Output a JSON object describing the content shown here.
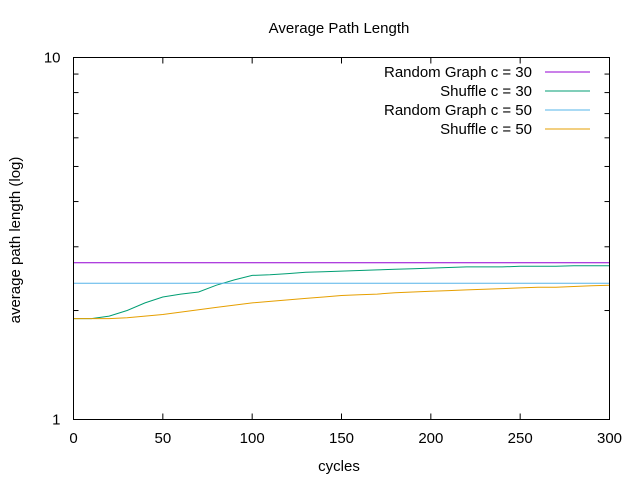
{
  "chart_data": {
    "type": "line",
    "title": "Average Path Length",
    "xlabel": "cycles",
    "ylabel": "average path length (log)",
    "xlim": [
      0,
      300
    ],
    "ylim": [
      1,
      10
    ],
    "yscale": "log",
    "grid": false,
    "legend_position": "top-right",
    "x_ticks": [
      "0",
      "50",
      "100",
      "150",
      "200",
      "250",
      "300"
    ],
    "y_ticks": [
      "1",
      "10"
    ],
    "series": [
      {
        "name": "Random Graph c = 30",
        "color": "#9400d3",
        "x": [
          0,
          300
        ],
        "y": [
          2.71,
          2.71
        ]
      },
      {
        "name": "Shuffle c = 30",
        "color": "#009e73",
        "x": [
          0,
          10,
          20,
          30,
          40,
          50,
          60,
          70,
          80,
          90,
          100,
          110,
          120,
          130,
          140,
          150,
          160,
          170,
          180,
          190,
          200,
          210,
          220,
          230,
          240,
          250,
          260,
          270,
          280,
          290,
          300
        ],
        "y": [
          1.9,
          1.9,
          1.93,
          2.0,
          2.1,
          2.18,
          2.22,
          2.25,
          2.35,
          2.43,
          2.5,
          2.51,
          2.53,
          2.55,
          2.56,
          2.57,
          2.58,
          2.59,
          2.6,
          2.61,
          2.62,
          2.63,
          2.64,
          2.64,
          2.64,
          2.65,
          2.65,
          2.65,
          2.66,
          2.66,
          2.66
        ]
      },
      {
        "name": "Random Graph c = 50",
        "color": "#56b4e9",
        "x": [
          0,
          300
        ],
        "y": [
          2.38,
          2.38
        ]
      },
      {
        "name": "Shuffle c = 50",
        "color": "#e69f00",
        "x": [
          0,
          10,
          20,
          30,
          40,
          50,
          60,
          70,
          80,
          90,
          100,
          110,
          120,
          130,
          140,
          150,
          160,
          170,
          180,
          190,
          200,
          210,
          220,
          230,
          240,
          250,
          260,
          270,
          280,
          290,
          300
        ],
        "y": [
          1.9,
          1.9,
          1.9,
          1.91,
          1.93,
          1.95,
          1.98,
          2.01,
          2.04,
          2.07,
          2.1,
          2.12,
          2.14,
          2.16,
          2.18,
          2.2,
          2.21,
          2.22,
          2.24,
          2.25,
          2.26,
          2.27,
          2.28,
          2.29,
          2.3,
          2.31,
          2.32,
          2.32,
          2.33,
          2.34,
          2.35
        ]
      }
    ]
  }
}
